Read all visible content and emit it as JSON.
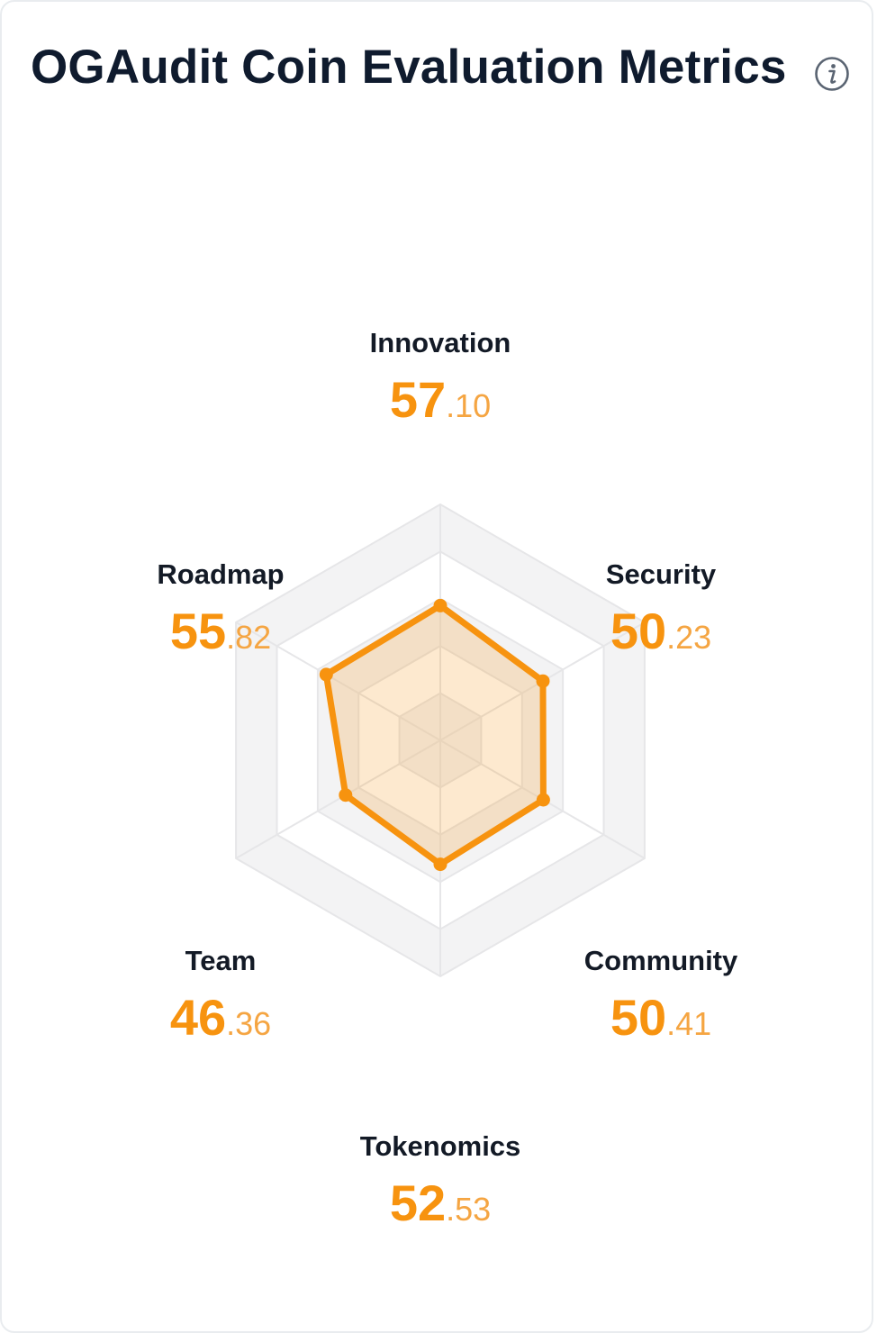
{
  "header": {
    "title": "OGAudit Coin Evaluation Metrics",
    "info_icon": "info-icon"
  },
  "colors": {
    "accent": "#f7930f",
    "fraction": "#f5a542",
    "grid_band": "#f3f3f4",
    "grid_line": "#e6e6e8",
    "title": "#0f1b2e"
  },
  "chart_data": {
    "type": "radar",
    "title": "",
    "grid": true,
    "range": [
      0,
      100
    ],
    "levels": 5,
    "axes": [
      "Innovation",
      "Security",
      "Community",
      "Tokenomics",
      "Team",
      "Roadmap"
    ],
    "values": [
      57.1,
      50.23,
      50.41,
      52.53,
      46.36,
      55.82
    ],
    "labels": [
      {
        "name": "Innovation",
        "int": "57",
        "frac": ".10"
      },
      {
        "name": "Security",
        "int": "50",
        "frac": ".23"
      },
      {
        "name": "Community",
        "int": "50",
        "frac": ".41"
      },
      {
        "name": "Tokenomics",
        "int": "52",
        "frac": ".53"
      },
      {
        "name": "Team",
        "int": "46",
        "frac": ".36"
      },
      {
        "name": "Roadmap",
        "int": "55",
        "frac": ".82"
      }
    ]
  }
}
